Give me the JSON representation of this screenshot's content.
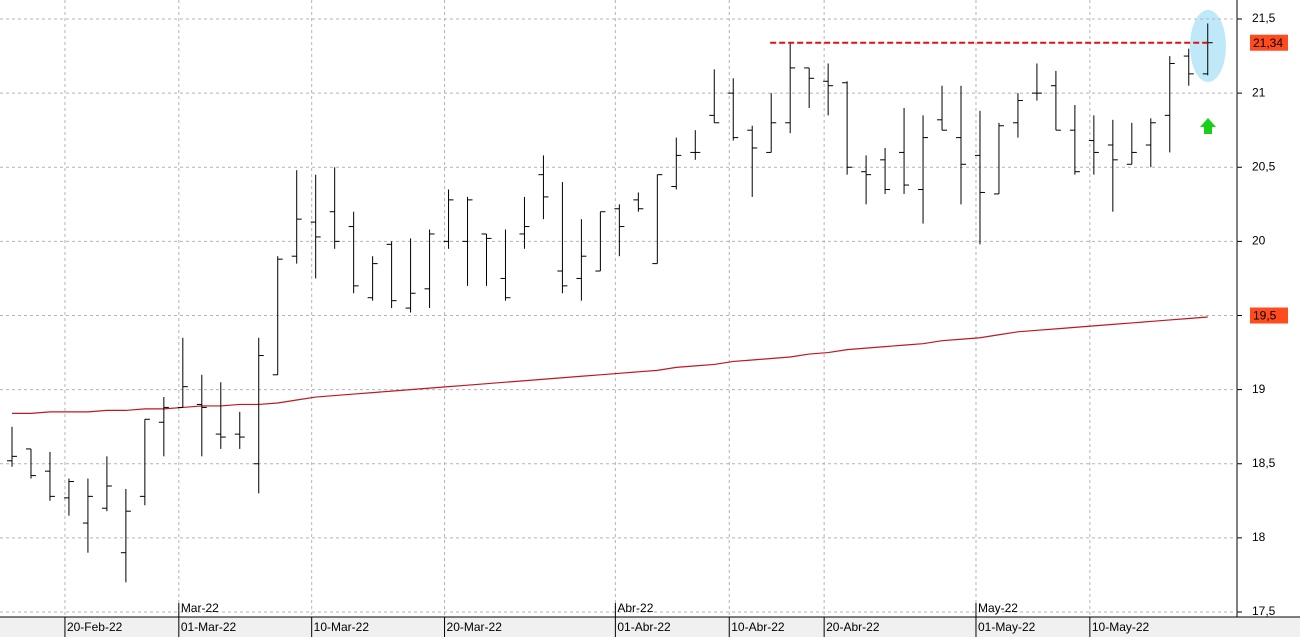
{
  "chart_data": {
    "type": "ohlc",
    "categories": [
      null,
      null,
      null,
      "20-Feb-22",
      null,
      null,
      null,
      null,
      null,
      "01-Mar-22",
      null,
      null,
      null,
      null,
      null,
      null,
      "10-Mar-22",
      null,
      null,
      null,
      null,
      null,
      null,
      "20-Mar-22",
      null,
      null,
      null,
      null,
      null,
      null,
      null,
      null,
      "01-Abr-22",
      null,
      null,
      null,
      null,
      null,
      "10-Abr-22",
      null,
      null,
      null,
      null,
      "20-Abr-22",
      null,
      null,
      null,
      null,
      null,
      null,
      null,
      "01-May-22",
      null,
      null,
      null,
      null,
      null,
      "10-May-22",
      null,
      null,
      null,
      null,
      null,
      null
    ],
    "months": [
      null,
      null,
      null,
      null,
      null,
      null,
      null,
      null,
      null,
      "Mar-22",
      null,
      null,
      null,
      null,
      null,
      null,
      null,
      null,
      null,
      null,
      null,
      null,
      null,
      null,
      null,
      null,
      null,
      null,
      null,
      null,
      null,
      null,
      "Abr-22",
      null,
      null,
      null,
      null,
      null,
      null,
      null,
      null,
      null,
      null,
      null,
      null,
      null,
      null,
      null,
      null,
      null,
      null,
      "May-22",
      null,
      null,
      null,
      null,
      null,
      null,
      null,
      null,
      null,
      null,
      null,
      null
    ],
    "open": [
      18.52,
      18.6,
      18.45,
      18.27,
      18.1,
      18.2,
      17.9,
      18.28,
      18.78,
      18.88,
      18.9,
      18.7,
      18.7,
      18.5,
      19.1,
      19.9,
      20.13,
      20.2,
      20.1,
      19.62,
      19.98,
      19.55,
      19.68,
      20.0,
      20.0,
      20.05,
      19.75,
      20.05,
      20.45,
      19.8,
      19.75,
      19.8,
      20.22,
      20.28,
      19.85,
      20.37,
      20.6,
      20.85,
      21.0,
      20.75,
      20.6,
      20.8,
      21.17,
      21.08,
      21.07,
      20.47,
      20.55,
      20.6,
      20.35,
      20.82,
      20.7,
      20.58,
      20.32,
      20.8,
      21.0,
      21.05,
      20.75,
      20.68,
      20.65,
      20.52,
      20.65,
      20.85,
      21.25,
      21.13
    ],
    "high": [
      18.75,
      18.6,
      18.58,
      18.4,
      18.4,
      18.55,
      18.33,
      18.8,
      18.95,
      19.35,
      19.1,
      19.05,
      18.85,
      19.35,
      19.9,
      20.48,
      20.45,
      20.5,
      20.2,
      19.9,
      20.0,
      20.02,
      20.08,
      20.35,
      20.3,
      20.05,
      20.08,
      20.3,
      20.58,
      20.4,
      20.15,
      20.2,
      20.25,
      20.33,
      20.45,
      20.7,
      20.75,
      21.16,
      21.1,
      20.78,
      21.0,
      21.34,
      21.17,
      21.2,
      21.08,
      20.58,
      20.63,
      20.9,
      20.85,
      21.05,
      21.05,
      20.88,
      20.8,
      21.0,
      21.2,
      21.15,
      20.92,
      20.85,
      20.82,
      20.8,
      20.83,
      21.25,
      21.3,
      21.47
    ],
    "low": [
      18.48,
      18.4,
      18.25,
      18.15,
      17.9,
      18.18,
      17.7,
      18.22,
      18.55,
      18.88,
      18.55,
      18.6,
      18.6,
      18.3,
      19.1,
      19.85,
      19.75,
      19.95,
      19.65,
      19.6,
      19.55,
      19.52,
      19.55,
      19.95,
      19.7,
      19.7,
      19.6,
      19.95,
      20.15,
      19.65,
      19.6,
      19.8,
      19.9,
      20.2,
      19.85,
      20.35,
      20.55,
      20.8,
      20.68,
      20.3,
      20.6,
      20.73,
      20.9,
      20.85,
      20.45,
      20.25,
      20.32,
      20.32,
      20.12,
      20.75,
      20.25,
      19.98,
      20.32,
      20.7,
      20.95,
      20.75,
      20.45,
      20.45,
      20.2,
      20.52,
      20.5,
      20.6,
      21.05,
      21.12
    ],
    "close": [
      18.55,
      18.42,
      18.28,
      18.38,
      18.28,
      18.35,
      18.18,
      18.8,
      18.88,
      19.02,
      18.88,
      18.68,
      18.68,
      19.23,
      19.88,
      20.15,
      20.03,
      20.0,
      19.7,
      19.85,
      19.6,
      19.65,
      20.05,
      20.28,
      20.28,
      20.02,
      19.62,
      20.1,
      20.3,
      19.7,
      19.9,
      20.2,
      20.1,
      20.22,
      20.45,
      20.58,
      20.6,
      20.8,
      20.7,
      20.63,
      20.8,
      21.17,
      21.1,
      21.05,
      20.5,
      20.45,
      20.35,
      20.38,
      20.7,
      20.75,
      20.52,
      20.33,
      20.78,
      20.95,
      21.0,
      20.75,
      20.47,
      20.6,
      20.55,
      20.6,
      20.8,
      21.2,
      21.13,
      21.34
    ],
    "color": "#000000",
    "moving_average": {
      "color": "#c0181e",
      "values": [
        18.84,
        18.84,
        18.85,
        18.85,
        18.85,
        18.86,
        18.86,
        18.87,
        18.87,
        18.88,
        18.89,
        18.89,
        18.9,
        18.9,
        18.91,
        18.93,
        18.95,
        18.96,
        18.97,
        18.98,
        18.99,
        19.0,
        19.01,
        19.02,
        19.03,
        19.04,
        19.05,
        19.06,
        19.07,
        19.08,
        19.09,
        19.1,
        19.11,
        19.12,
        19.13,
        19.15,
        19.16,
        19.17,
        19.19,
        19.2,
        19.21,
        19.22,
        19.24,
        19.25,
        19.27,
        19.28,
        19.29,
        19.3,
        19.31,
        19.33,
        19.34,
        19.35,
        19.37,
        19.39,
        19.4,
        19.41,
        19.42,
        19.43,
        19.44,
        19.45,
        19.46,
        19.47,
        19.48,
        19.49
      ]
    },
    "last_price": {
      "value": 21.34,
      "label": "21,34",
      "color": "#ff4b1e"
    },
    "ma_price": {
      "value": 19.5,
      "label": "19,5",
      "color": "#ff4b1e"
    },
    "resistance": {
      "value": 21.34,
      "from_index": 41,
      "color": "#e01010"
    },
    "ylim": [
      17.5,
      21.5
    ],
    "yticks": [
      {
        "value": 17.5,
        "label": "17,5"
      },
      18,
      {
        "value": 18.5,
        "label": "18,5"
      },
      19,
      {
        "value": 19.5,
        "label": "19,5"
      },
      20,
      {
        "value": 20.5,
        "label": "20,5"
      },
      21,
      {
        "value": 21.5,
        "label": "21,5"
      }
    ],
    "grid": true
  }
}
